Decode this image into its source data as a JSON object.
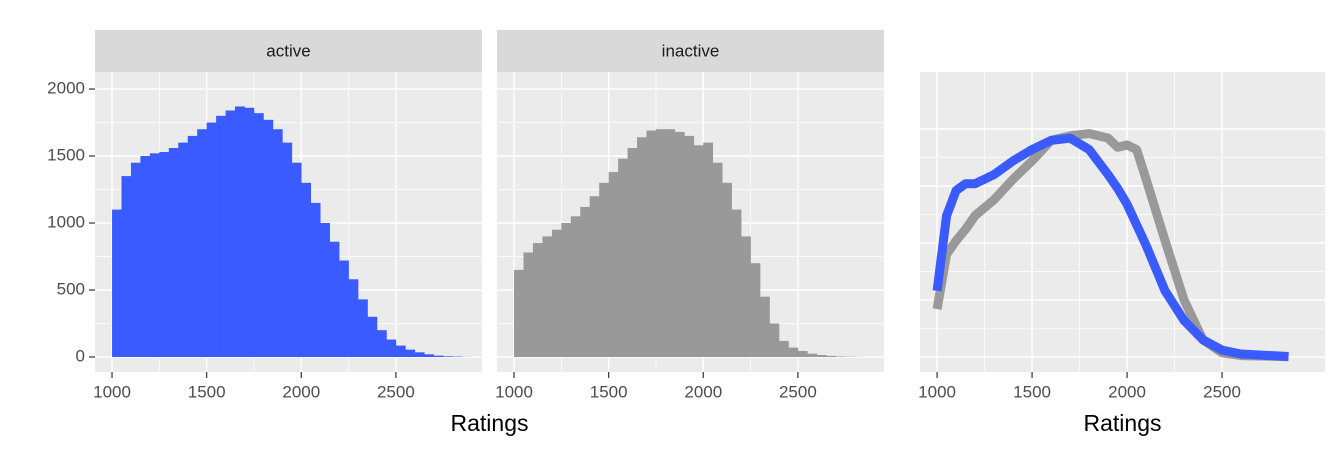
{
  "chart_data": [
    {
      "type": "histogram",
      "facet_label": "active",
      "xlabel": "Ratings",
      "color": "#3a5bff",
      "bins": [
        1000,
        1050,
        1100,
        1150,
        1200,
        1250,
        1300,
        1350,
        1400,
        1450,
        1500,
        1550,
        1600,
        1650,
        1700,
        1750,
        1800,
        1850,
        1900,
        1950,
        2000,
        2050,
        2100,
        2150,
        2200,
        2250,
        2300,
        2350,
        2400,
        2450,
        2500,
        2550,
        2600,
        2650,
        2700,
        2750,
        2800,
        2850,
        2900
      ],
      "values": [
        1100,
        1350,
        1450,
        1500,
        1520,
        1530,
        1560,
        1600,
        1650,
        1700,
        1750,
        1800,
        1840,
        1870,
        1860,
        1820,
        1770,
        1700,
        1600,
        1450,
        1300,
        1150,
        1000,
        860,
        720,
        580,
        430,
        300,
        200,
        130,
        85,
        55,
        35,
        20,
        10,
        5,
        3,
        1
      ],
      "xlim": [
        910,
        2955
      ],
      "xticks": [
        1000,
        1500,
        2000,
        2500
      ],
      "ylim": [
        -112,
        2127
      ],
      "yticks": [
        0,
        500,
        1000,
        1500,
        2000
      ],
      "y_tick_labels": true,
      "grid": true
    },
    {
      "type": "histogram",
      "facet_label": "inactive",
      "color": "#999999",
      "bins": [
        1000,
        1050,
        1100,
        1150,
        1200,
        1250,
        1300,
        1350,
        1400,
        1450,
        1500,
        1550,
        1600,
        1650,
        1700,
        1750,
        1800,
        1850,
        1900,
        1950,
        2000,
        2050,
        2100,
        2150,
        2200,
        2250,
        2300,
        2350,
        2400,
        2450,
        2500,
        2550,
        2600,
        2650,
        2700,
        2750,
        2800,
        2850,
        2900
      ],
      "values": [
        650,
        780,
        850,
        900,
        950,
        1000,
        1050,
        1120,
        1200,
        1300,
        1380,
        1480,
        1560,
        1640,
        1690,
        1700,
        1700,
        1680,
        1650,
        1580,
        1600,
        1450,
        1300,
        1100,
        900,
        700,
        450,
        250,
        120,
        70,
        45,
        25,
        15,
        8,
        4,
        2,
        1,
        0
      ],
      "xlim": [
        910,
        2955
      ],
      "xticks": [
        1000,
        1500,
        2000,
        2500
      ],
      "ylim": [
        -112,
        2127
      ],
      "yticks": [
        0,
        500,
        1000,
        1500,
        2000
      ],
      "y_tick_labels": false,
      "grid": true
    },
    {
      "type": "line",
      "xlabel": "Ratings",
      "x": [
        1000,
        1050,
        1100,
        1150,
        1200,
        1300,
        1400,
        1500,
        1600,
        1700,
        1800,
        1900,
        1950,
        2000,
        2050,
        2100,
        2200,
        2300,
        2400,
        2500,
        2600,
        2850
      ],
      "series": [
        {
          "color": "#999999",
          "values": [
            0.00021,
            0.00045,
            0.00051,
            0.00056,
            0.00062,
            0.00069,
            0.00078,
            0.00086,
            0.00095,
            0.00097,
            0.00098,
            0.00096,
            0.00092,
            0.00093,
            0.00091,
            0.00078,
            0.00051,
            0.00025,
            7.5e-05,
            1.8e-05,
            6e-06,
            1e-06
          ]
        },
        {
          "color": "#3a5bff",
          "values": [
            0.00029,
            0.00062,
            0.00073,
            0.00076,
            0.00076,
            0.0008,
            0.00086,
            0.00091,
            0.00095,
            0.00096,
            0.00091,
            0.0008,
            0.00074,
            0.00067,
            0.00058,
            0.00049,
            0.00029,
            0.00016,
            7.5e-05,
            3e-05,
            1.3e-05,
            2e-06
          ]
        }
      ],
      "xlim": [
        910,
        3042
      ],
      "xticks": [
        1000,
        1500,
        2000,
        2500
      ],
      "ylim": [
        -6.6e-05,
        0.00125
      ],
      "yticks": [
        0,
        0.00025,
        0.0005,
        0.00075,
        0.001
      ],
      "y_tick_labels": false,
      "grid": true
    }
  ]
}
